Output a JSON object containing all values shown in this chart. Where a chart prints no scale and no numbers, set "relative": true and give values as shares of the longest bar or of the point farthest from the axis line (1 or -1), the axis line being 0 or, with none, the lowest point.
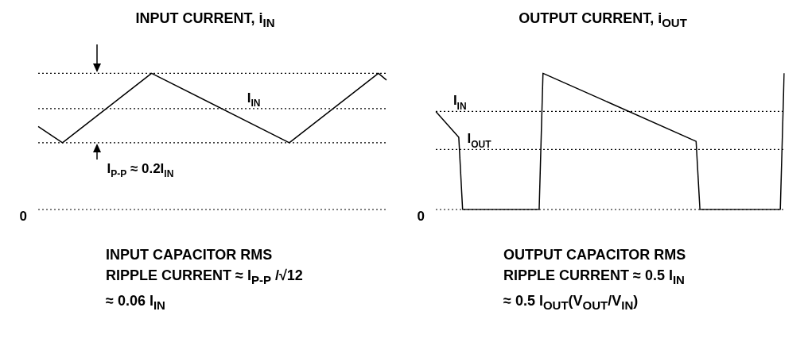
{
  "chart_data": [
    {
      "type": "line",
      "title": "INPUT CURRENT, i$_{IN}$",
      "relative": true,
      "categories": [
        null,
        null,
        null,
        null,
        null,
        null,
        null,
        null,
        null,
        null,
        null,
        null,
        null,
        null,
        null,
        null,
        null,
        null,
        null,
        null,
        null,
        null,
        null,
        null,
        null,
        null,
        null,
        null,
        null,
        null,
        null,
        null,
        null,
        null,
        null,
        null,
        null,
        null,
        null,
        null,
        null,
        null,
        null,
        null
      ],
      "series": [
        {
          "color": "#000000",
          "values": [
            0.61,
            null,
            null,
            0.49,
            null,
            null,
            null,
            null,
            null,
            null,
            null,
            null,
            null,
            null,
            1,
            null,
            null,
            null,
            null,
            null,
            null,
            null,
            null,
            null,
            null,
            null,
            null,
            null,
            null,
            null,
            null,
            0.49,
            null,
            null,
            null,
            null,
            null,
            null,
            null,
            null,
            null,
            null,
            1,
            0.95
          ]
        }
      ],
      "ref_lines": [
        {
          "axis": "y",
          "value": 1,
          "line_style": "dotted"
        },
        {
          "axis": "y",
          "value": 0.74,
          "label": "I$_{IN}$",
          "line_style": "dotted"
        },
        {
          "axis": "y",
          "value": 0.49,
          "line_style": "dotted"
        },
        {
          "axis": "y",
          "value": 0,
          "label": "0",
          "line_style": "dotted"
        }
      ],
      "annotations": [
        "I$_{P-P}$ ≈ 0.2I$_{IN}$",
        "INPUT CAPACITOR RMS",
        "RIPPLE CURRENT ≈ I$_{P-P}$ /√12",
        "≈ 0.06 I$_{IN}$"
      ]
    },
    {
      "type": "line",
      "title": "OUTPUT CURRENT, i$_{OUT}$",
      "relative": true,
      "categories": [
        null,
        null,
        null,
        null,
        null,
        null,
        null,
        null,
        null,
        null,
        null,
        null,
        null,
        null,
        null,
        null,
        null,
        null,
        null,
        null,
        null,
        null,
        null,
        null,
        null,
        null,
        null,
        null,
        null,
        null,
        null,
        null,
        null,
        null,
        null,
        null,
        null,
        null,
        null,
        null,
        null,
        null,
        null,
        null,
        null,
        null,
        null,
        null,
        null,
        null,
        null,
        null,
        null,
        null,
        null,
        null,
        null,
        null,
        null,
        null,
        null,
        null,
        null,
        null,
        null,
        null,
        null,
        null,
        null,
        null,
        null,
        null,
        null,
        null,
        null,
        null,
        null,
        null,
        null,
        null,
        null,
        null,
        null,
        null,
        null,
        null,
        null,
        null,
        null,
        null,
        null,
        null
      ],
      "series": [
        {
          "color": "#000000",
          "values": [
            0.72,
            null,
            null,
            null,
            null,
            null,
            0.53,
            0,
            null,
            null,
            null,
            null,
            null,
            null,
            null,
            null,
            null,
            null,
            null,
            null,
            null,
            null,
            null,
            null,
            null,
            null,
            null,
            0,
            1,
            null,
            null,
            null,
            null,
            null,
            null,
            null,
            null,
            null,
            null,
            null,
            null,
            null,
            null,
            null,
            null,
            null,
            null,
            null,
            null,
            null,
            null,
            null,
            null,
            null,
            null,
            null,
            null,
            null,
            null,
            null,
            null,
            null,
            null,
            null,
            null,
            null,
            null,
            null,
            0.5,
            0,
            null,
            null,
            null,
            null,
            null,
            null,
            null,
            null,
            null,
            null,
            null,
            null,
            null,
            null,
            null,
            null,
            null,
            null,
            null,
            null,
            0,
            1
          ]
        }
      ],
      "ref_lines": [
        {
          "axis": "y",
          "value": 0.72,
          "label": "I$_{IN}$",
          "line_style": "dotted"
        },
        {
          "axis": "y",
          "value": 0.44,
          "label": "I$_{OUT}$",
          "line_style": "dotted"
        },
        {
          "axis": "y",
          "value": 0,
          "label": "0",
          "line_style": "dotted"
        }
      ],
      "annotations": [
        "OUTPUT CAPACITOR RMS",
        "RIPPLE CURRENT ≈ 0.5 I$_{IN}$",
        "≈ 0.5 I$_{OUT}$(V$_{OUT}$/V$_{IN}$)"
      ]
    }
  ]
}
